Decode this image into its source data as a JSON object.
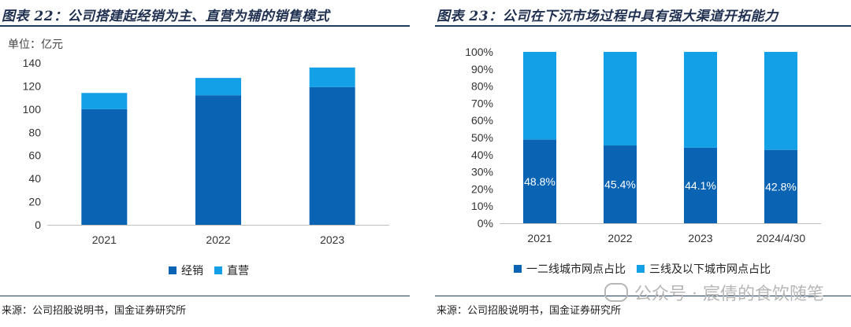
{
  "left": {
    "title": "图表 22：公司搭建起经销为主、直营为辅的销售模式",
    "unit": "单位：亿元",
    "source": "来源：公司招股说明书，国金证券研究所"
  },
  "right": {
    "title": "图表 23：公司在下沉市场过程中具有强大渠道开拓能力",
    "source": "来源：公司招股说明书，国金证券研究所",
    "watermark": "公众号 · 宸倩的食饮随笔"
  },
  "chart_data": [
    {
      "type": "bar",
      "stacked": true,
      "categories": [
        "2021",
        "2022",
        "2023"
      ],
      "series": [
        {
          "name": "经销",
          "values": [
            100,
            112,
            119
          ],
          "color": "#0b63b4"
        },
        {
          "name": "直营",
          "values": [
            14,
            15,
            17
          ],
          "color": "#13a0e6"
        }
      ],
      "ylim": [
        0,
        140
      ],
      "yticks": [
        "0",
        "20",
        "40",
        "60",
        "80",
        "100",
        "120",
        "140"
      ],
      "legend_position": "bottom",
      "grid": false
    },
    {
      "type": "bar",
      "stacked": true,
      "categories": [
        "2021",
        "2022",
        "2023",
        "2024/4/30"
      ],
      "series": [
        {
          "name": "一二线城市网点占比",
          "values": [
            48.8,
            45.4,
            44.1,
            42.8
          ],
          "labels": [
            "48.8%",
            "45.4%",
            "44.1%",
            "42.8%"
          ],
          "color": "#0b63b4"
        },
        {
          "name": "三线及以下城市网点占比",
          "values": [
            51.2,
            54.6,
            55.9,
            57.2
          ],
          "color": "#13a0e6"
        }
      ],
      "ylim": [
        0,
        100
      ],
      "yticks": [
        "0%",
        "10%",
        "20%",
        "30%",
        "40%",
        "50%",
        "60%",
        "70%",
        "80%",
        "90%",
        "100%"
      ],
      "legend_position": "bottom",
      "grid": false
    }
  ]
}
